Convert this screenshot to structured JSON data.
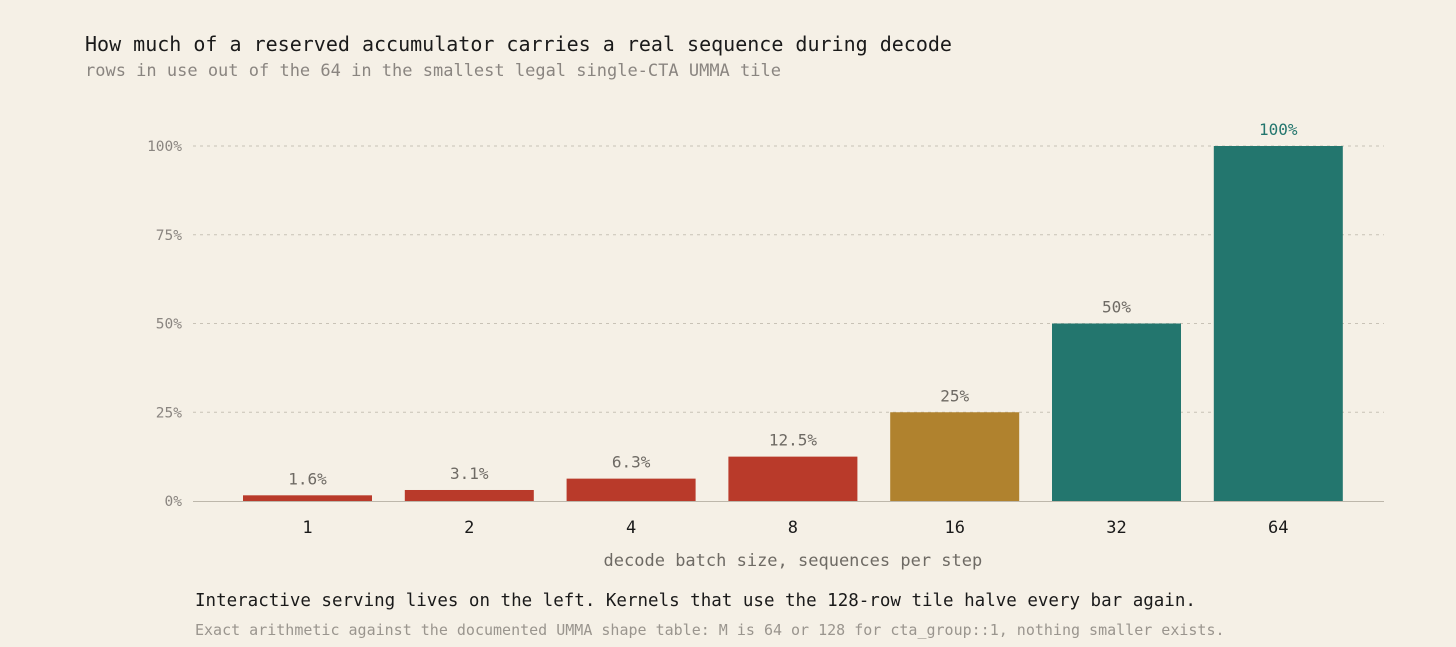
{
  "header": {
    "title": "How much of a reserved accumulator carries a real sequence during decode",
    "subtitle": "rows in use out of the 64 in the smallest legal single-CTA UMMA tile"
  },
  "chart_data": {
    "type": "bar",
    "title": "How much of a reserved accumulator carries a real sequence during decode",
    "subtitle": "rows in use out of the 64 in the smallest legal single-CTA UMMA tile",
    "xlabel": "decode batch size, sequences per step",
    "ylabel": "",
    "categories": [
      "1",
      "2",
      "4",
      "8",
      "16",
      "32",
      "64"
    ],
    "values": [
      1.6,
      3.1,
      6.3,
      12.5,
      25,
      50,
      100
    ],
    "value_labels": [
      "1.6%",
      "3.1%",
      "6.3%",
      "12.5%",
      "25%",
      "50%",
      "100%"
    ],
    "bar_colors": [
      "#b93a2a",
      "#b93a2a",
      "#b93a2a",
      "#b93a2a",
      "#b0822e",
      "#23766e",
      "#23766e"
    ],
    "ylim": [
      0,
      100
    ],
    "yticks": [
      0,
      25,
      50,
      75,
      100
    ],
    "ytick_labels": [
      "0%",
      "25%",
      "50%",
      "75%",
      "100%"
    ],
    "grid": true,
    "legend": "none"
  },
  "footer": {
    "note": "Interactive serving lives on the left. Kernels that use the 128-row tile halve every bar again.",
    "footnote": "Exact arithmetic against the documented UMMA shape table: M is 64 or 128 for cta_group::1, nothing smaller exists."
  },
  "colors": {
    "background": "#f5f0e6",
    "low": "#b93a2a",
    "mid": "#b0822e",
    "high": "#23766e",
    "text": "#1a1a1a",
    "muted": "#8a8580",
    "grid": "#c8c2b6"
  }
}
